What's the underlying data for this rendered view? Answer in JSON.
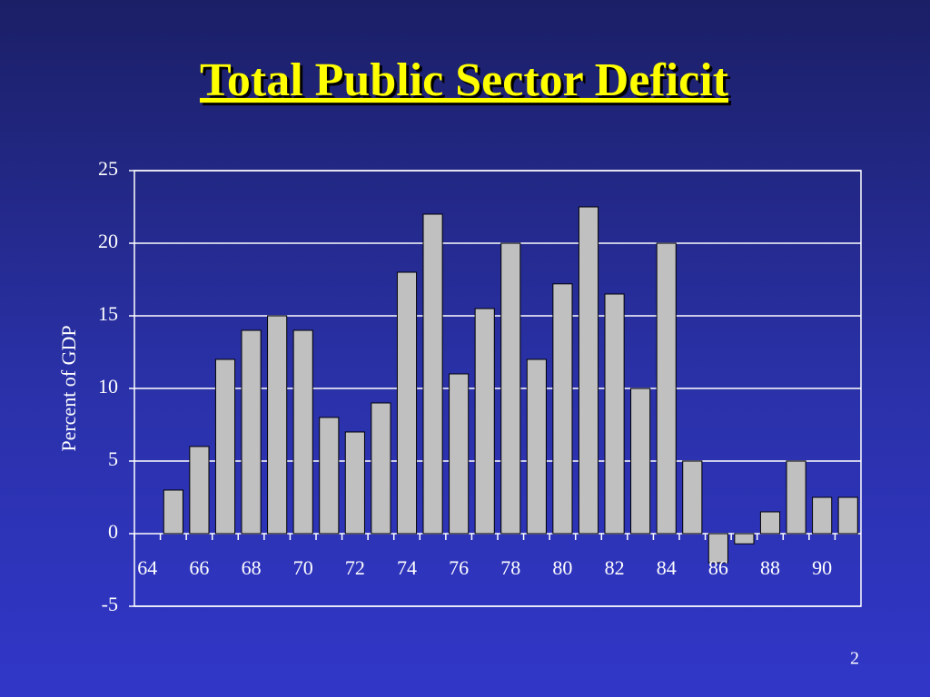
{
  "chart_data": {
    "type": "bar",
    "title": "Total Public Sector Deficit",
    "y_label": "Percent of GDP",
    "categories": [
      "64",
      null,
      "66",
      null,
      "68",
      null,
      "70",
      null,
      "72",
      null,
      "74",
      null,
      "76",
      null,
      "78",
      null,
      "80",
      null,
      "82",
      null,
      "84",
      null,
      "86",
      null,
      "88",
      null,
      "90",
      null
    ],
    "values": [
      null,
      3,
      6,
      12,
      14,
      15,
      14,
      8,
      7,
      9,
      18,
      22,
      11,
      15.5,
      20,
      12,
      17.2,
      22.5,
      16.5,
      10,
      20,
      5,
      -2,
      -0.7,
      1.5,
      5,
      2.5,
      2.5
    ],
    "color": "#c0c0c0",
    "ylim": [
      -5,
      25
    ],
    "yticks": [
      -5,
      0,
      5,
      10,
      15,
      20,
      25
    ],
    "grid": true
  },
  "page_number": "2"
}
